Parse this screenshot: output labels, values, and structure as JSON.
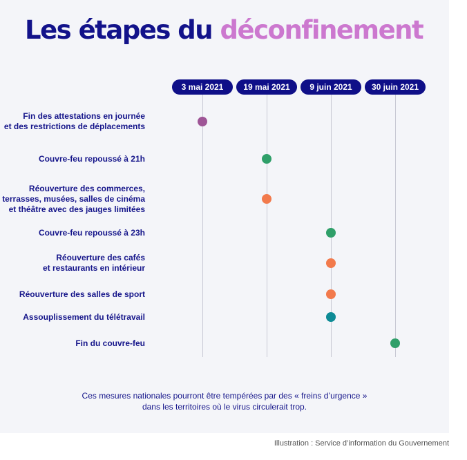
{
  "title": {
    "part1": "Les étapes du",
    "part2": "déconfinement",
    "accent_color": "#cc78cf",
    "main_color": "#12128a"
  },
  "dates": [
    "3 mai 2021",
    "19 mai 2021",
    "9 juin 2021",
    "30 juin 2021"
  ],
  "steps": [
    {
      "label_lines": [
        "Fin des attestations en journée",
        "et des restrictions de déplacements"
      ],
      "date": "3 mai 2021",
      "color": "#9e5596"
    },
    {
      "label_lines": [
        "Couvre-feu repoussé à 21h"
      ],
      "date": "19 mai 2021",
      "color": "#2f9f69"
    },
    {
      "label_lines": [
        "Réouverture des commerces,",
        "terrasses, musées, salles de cinéma",
        "et théâtre avec des jauges limitées"
      ],
      "date": "19 mai 2021",
      "color": "#f27a4c"
    },
    {
      "label_lines": [
        "Couvre-feu repoussé à 23h"
      ],
      "date": "9 juin 2021",
      "color": "#2f9f69"
    },
    {
      "label_lines": [
        "Réouverture des cafés",
        "et restaurants en intérieur"
      ],
      "date": "9 juin 2021",
      "color": "#f27a4c"
    },
    {
      "label_lines": [
        "Réouverture des salles de sport"
      ],
      "date": "9 juin 2021",
      "color": "#f27a4c"
    },
    {
      "label_lines": [
        "Assouplissement du télétravail"
      ],
      "date": "9 juin 2021",
      "color": "#0e8b96"
    },
    {
      "label_lines": [
        "Fin du couvre-feu"
      ],
      "date": "30 juin 2021",
      "color": "#2f9f69"
    }
  ],
  "footnote": {
    "line1": "Ces mesures nationales pourront être tempérées par des « freins d’urgence »",
    "line2": "dans les territoires où le virus circulerait trop."
  },
  "credit": "Illustration : Service d’information du Gouvernement"
}
